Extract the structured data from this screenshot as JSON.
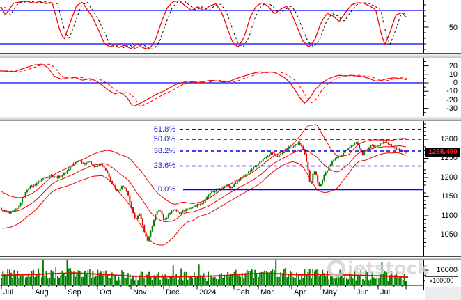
{
  "watermark": {
    "logo": "ring-icon",
    "text": "ietstock"
  },
  "x_axis": {
    "labels": [
      {
        "text": "Jul",
        "x": 5
      },
      {
        "text": "Aug",
        "x": 50
      },
      {
        "text": "Sep",
        "x": 97
      },
      {
        "text": "Oct",
        "x": 143
      },
      {
        "text": "Nov",
        "x": 191
      },
      {
        "text": "Dec",
        "x": 238
      },
      {
        "text": "2024",
        "x": 286
      },
      {
        "text": "Feb",
        "x": 339
      },
      {
        "text": "Mar",
        "x": 374
      },
      {
        "text": "Apr",
        "x": 422
      },
      {
        "text": "May",
        "x": 463
      },
      {
        "text": "Jun",
        "x": 512
      },
      {
        "text": "Jul",
        "x": 546
      }
    ],
    "month_ticks": [
      2,
      47,
      94,
      140,
      188,
      235,
      283,
      336,
      371,
      419,
      460,
      509,
      543,
      583
    ]
  },
  "panels": {
    "stochastic": {
      "axis_labels": [
        "50"
      ],
      "overbought_level": 80,
      "oversold_level": 20
    },
    "macd": {
      "axis_labels": [
        "20",
        "10",
        "0",
        "-10",
        "-20",
        "-30"
      ],
      "zero_level": 0
    },
    "price": {
      "axis_labels": [
        "1300",
        "1250",
        "1200",
        "1150",
        "1100",
        "1050"
      ],
      "last_price": "1265.490"
    },
    "volume": {
      "axis_labels": [
        "10000"
      ],
      "multiplier": "x100000"
    }
  },
  "colors": {
    "up_candle": "#008000",
    "down_candle": "#e00000",
    "band_line": "#f00000",
    "indicator_line": "#ff0000",
    "signal_dashed_p1": "#000000",
    "signal_dashed_p2": "#ff0000",
    "level_line": "#0000ff",
    "fib_line": "#0000ee",
    "fib_text": "#2222cc",
    "badge_bg": "#000000",
    "badge_text": "#ff2222",
    "volume_bar": "#008000",
    "volume_ma": "#ff0000"
  },
  "chart_data": [
    {
      "panel": "stochastic",
      "type": "line",
      "ylim": [
        0,
        100
      ],
      "levels": [
        80,
        20
      ],
      "yticks_labeled": [
        50
      ],
      "legend_position": "none",
      "grid": false,
      "series": [
        {
          "name": "%K",
          "style": "solid",
          "color": "#ff0000"
        },
        {
          "name": "%D",
          "style": "dashed",
          "color": "#000000",
          "lag": 0.012
        }
      ],
      "anchors": [
        [
          0,
          85
        ],
        [
          0.01,
          72
        ],
        [
          0.03,
          93
        ],
        [
          0.06,
          97
        ],
        [
          0.08,
          93
        ],
        [
          0.095,
          96
        ],
        [
          0.11,
          92
        ],
        [
          0.125,
          95
        ],
        [
          0.135,
          70
        ],
        [
          0.145,
          42
        ],
        [
          0.155,
          28
        ],
        [
          0.17,
          58
        ],
        [
          0.185,
          88
        ],
        [
          0.2,
          95
        ],
        [
          0.21,
          84
        ],
        [
          0.225,
          68
        ],
        [
          0.24,
          45
        ],
        [
          0.255,
          20
        ],
        [
          0.27,
          14
        ],
        [
          0.28,
          20
        ],
        [
          0.29,
          13
        ],
        [
          0.305,
          18
        ],
        [
          0.32,
          11
        ],
        [
          0.335,
          20
        ],
        [
          0.35,
          13
        ],
        [
          0.365,
          10
        ],
        [
          0.38,
          26
        ],
        [
          0.395,
          58
        ],
        [
          0.41,
          85
        ],
        [
          0.425,
          96
        ],
        [
          0.44,
          97
        ],
        [
          0.455,
          88
        ],
        [
          0.47,
          80
        ],
        [
          0.485,
          87
        ],
        [
          0.5,
          80
        ],
        [
          0.515,
          88
        ],
        [
          0.53,
          92
        ],
        [
          0.545,
          76
        ],
        [
          0.56,
          45
        ],
        [
          0.572,
          22
        ],
        [
          0.585,
          14
        ],
        [
          0.6,
          32
        ],
        [
          0.615,
          68
        ],
        [
          0.63,
          88
        ],
        [
          0.645,
          94
        ],
        [
          0.66,
          87
        ],
        [
          0.675,
          74
        ],
        [
          0.69,
          82
        ],
        [
          0.705,
          88
        ],
        [
          0.715,
          78
        ],
        [
          0.73,
          52
        ],
        [
          0.745,
          25
        ],
        [
          0.76,
          14
        ],
        [
          0.775,
          28
        ],
        [
          0.79,
          58
        ],
        [
          0.805,
          75
        ],
        [
          0.82,
          70
        ],
        [
          0.835,
          60
        ],
        [
          0.85,
          76
        ],
        [
          0.865,
          90
        ],
        [
          0.88,
          94
        ],
        [
          0.895,
          93
        ],
        [
          0.91,
          88
        ],
        [
          0.925,
          82
        ],
        [
          0.938,
          40
        ],
        [
          0.948,
          18
        ],
        [
          0.96,
          40
        ],
        [
          0.975,
          72
        ],
        [
          0.99,
          76
        ],
        [
          1,
          68
        ]
      ]
    },
    {
      "panel": "macd",
      "type": "line",
      "ylim": [
        -35,
        25
      ],
      "yticks": [
        20,
        10,
        0,
        -10,
        -20,
        -30
      ],
      "zero_line": 0,
      "grid": false,
      "series": [
        {
          "name": "macd",
          "style": "solid",
          "color": "#ff0000"
        },
        {
          "name": "signal",
          "style": "dashed",
          "color": "#ff0000",
          "lag": 0.018
        }
      ],
      "anchors": [
        [
          0,
          14
        ],
        [
          0.03,
          13
        ],
        [
          0.055,
          17
        ],
        [
          0.08,
          21
        ],
        [
          0.1,
          22
        ],
        [
          0.115,
          18
        ],
        [
          0.13,
          8
        ],
        [
          0.15,
          4
        ],
        [
          0.165,
          7
        ],
        [
          0.185,
          6
        ],
        [
          0.2,
          3
        ],
        [
          0.22,
          5
        ],
        [
          0.235,
          2
        ],
        [
          0.25,
          -3
        ],
        [
          0.265,
          -9
        ],
        [
          0.28,
          -13
        ],
        [
          0.295,
          -11
        ],
        [
          0.31,
          -17
        ],
        [
          0.325,
          -28
        ],
        [
          0.34,
          -25
        ],
        [
          0.355,
          -21
        ],
        [
          0.37,
          -17
        ],
        [
          0.385,
          -13
        ],
        [
          0.4,
          -10
        ],
        [
          0.415,
          -6
        ],
        [
          0.43,
          -2
        ],
        [
          0.445,
          0
        ],
        [
          0.46,
          2
        ],
        [
          0.475,
          1
        ],
        [
          0.49,
          0
        ],
        [
          0.505,
          2
        ],
        [
          0.52,
          3
        ],
        [
          0.535,
          2
        ],
        [
          0.55,
          1
        ],
        [
          0.565,
          2
        ],
        [
          0.58,
          5
        ],
        [
          0.6,
          8
        ],
        [
          0.62,
          11
        ],
        [
          0.64,
          13
        ],
        [
          0.655,
          12
        ],
        [
          0.67,
          13
        ],
        [
          0.685,
          10
        ],
        [
          0.7,
          6
        ],
        [
          0.712,
          1
        ],
        [
          0.725,
          -8
        ],
        [
          0.738,
          -18
        ],
        [
          0.75,
          -24
        ],
        [
          0.762,
          -18
        ],
        [
          0.775,
          -8
        ],
        [
          0.79,
          -1
        ],
        [
          0.805,
          4
        ],
        [
          0.82,
          7
        ],
        [
          0.835,
          9
        ],
        [
          0.85,
          8
        ],
        [
          0.865,
          9
        ],
        [
          0.88,
          8
        ],
        [
          0.895,
          7
        ],
        [
          0.91,
          5
        ],
        [
          0.925,
          2
        ],
        [
          0.94,
          3
        ],
        [
          0.955,
          5
        ],
        [
          0.97,
          6
        ],
        [
          0.985,
          5
        ],
        [
          1,
          4
        ]
      ]
    },
    {
      "panel": "price",
      "type": "candlestick",
      "days": 253,
      "ylim": [
        1020,
        1345
      ],
      "yticks": [
        1300,
        1250,
        1200,
        1150,
        1100,
        1050
      ],
      "last_price": 1265.49,
      "grid": false,
      "bollinger": {
        "window": 20,
        "mid_color": "#f00000"
      },
      "fibonacci": [
        {
          "label": "61.8%",
          "price": 1325
        },
        {
          "label": "50.0%",
          "price": 1300
        },
        {
          "label": "38.2%",
          "price": 1269
        },
        {
          "label": "23.6%",
          "price": 1230
        },
        {
          "label": "0.0%",
          "price": 1168
        }
      ],
      "close_anchors": [
        [
          0,
          1115
        ],
        [
          0.02,
          1106
        ],
        [
          0.04,
          1118
        ],
        [
          0.065,
          1172
        ],
        [
          0.08,
          1180
        ],
        [
          0.1,
          1196
        ],
        [
          0.12,
          1206
        ],
        [
          0.14,
          1200
        ],
        [
          0.158,
          1212
        ],
        [
          0.175,
          1232
        ],
        [
          0.19,
          1246
        ],
        [
          0.205,
          1236
        ],
        [
          0.218,
          1243
        ],
        [
          0.232,
          1226
        ],
        [
          0.245,
          1236
        ],
        [
          0.258,
          1218
        ],
        [
          0.272,
          1188
        ],
        [
          0.285,
          1162
        ],
        [
          0.3,
          1180
        ],
        [
          0.312,
          1158
        ],
        [
          0.322,
          1118
        ],
        [
          0.33,
          1088
        ],
        [
          0.34,
          1108
        ],
        [
          0.35,
          1072
        ],
        [
          0.36,
          1032
        ],
        [
          0.372,
          1068
        ],
        [
          0.382,
          1108
        ],
        [
          0.392,
          1116
        ],
        [
          0.402,
          1088
        ],
        [
          0.412,
          1102
        ],
        [
          0.425,
          1118
        ],
        [
          0.44,
          1108
        ],
        [
          0.455,
          1116
        ],
        [
          0.47,
          1122
        ],
        [
          0.484,
          1128
        ],
        [
          0.5,
          1136
        ],
        [
          0.515,
          1158
        ],
        [
          0.53,
          1166
        ],
        [
          0.545,
          1174
        ],
        [
          0.558,
          1182
        ],
        [
          0.568,
          1172
        ],
        [
          0.58,
          1188
        ],
        [
          0.595,
          1202
        ],
        [
          0.61,
          1214
        ],
        [
          0.625,
          1228
        ],
        [
          0.64,
          1242
        ],
        [
          0.655,
          1255
        ],
        [
          0.668,
          1266
        ],
        [
          0.68,
          1255
        ],
        [
          0.692,
          1262
        ],
        [
          0.705,
          1275
        ],
        [
          0.718,
          1282
        ],
        [
          0.735,
          1290
        ],
        [
          0.745,
          1278
        ],
        [
          0.752,
          1252
        ],
        [
          0.758,
          1218
        ],
        [
          0.764,
          1172
        ],
        [
          0.77,
          1208
        ],
        [
          0.776,
          1216
        ],
        [
          0.782,
          1186
        ],
        [
          0.788,
          1176
        ],
        [
          0.798,
          1206
        ],
        [
          0.808,
          1224
        ],
        [
          0.818,
          1242
        ],
        [
          0.828,
          1250
        ],
        [
          0.838,
          1258
        ],
        [
          0.848,
          1268
        ],
        [
          0.858,
          1278
        ],
        [
          0.868,
          1285
        ],
        [
          0.878,
          1290
        ],
        [
          0.886,
          1277
        ],
        [
          0.893,
          1258
        ],
        [
          0.902,
          1272
        ],
        [
          0.912,
          1283
        ],
        [
          0.923,
          1279
        ],
        [
          0.935,
          1288
        ],
        [
          0.948,
          1293
        ],
        [
          0.958,
          1285
        ],
        [
          0.97,
          1277
        ],
        [
          0.985,
          1272
        ],
        [
          1,
          1265.5
        ]
      ],
      "band_halfwidth_anchors": [
        [
          0,
          48
        ],
        [
          0.03,
          38
        ],
        [
          0.06,
          28
        ],
        [
          0.09,
          24
        ],
        [
          0.12,
          20
        ],
        [
          0.15,
          22
        ],
        [
          0.19,
          26
        ],
        [
          0.22,
          28
        ],
        [
          0.25,
          32
        ],
        [
          0.28,
          45
        ],
        [
          0.31,
          58
        ],
        [
          0.34,
          70
        ],
        [
          0.37,
          74
        ],
        [
          0.4,
          62
        ],
        [
          0.43,
          40
        ],
        [
          0.46,
          25
        ],
        [
          0.49,
          18
        ],
        [
          0.52,
          20
        ],
        [
          0.55,
          22
        ],
        [
          0.58,
          22
        ],
        [
          0.61,
          20
        ],
        [
          0.64,
          22
        ],
        [
          0.67,
          20
        ],
        [
          0.7,
          18
        ],
        [
          0.72,
          22
        ],
        [
          0.74,
          38
        ],
        [
          0.76,
          68
        ],
        [
          0.78,
          85
        ],
        [
          0.8,
          70
        ],
        [
          0.82,
          50
        ],
        [
          0.84,
          34
        ],
        [
          0.86,
          24
        ],
        [
          0.88,
          22
        ],
        [
          0.9,
          25
        ],
        [
          0.92,
          22
        ],
        [
          0.94,
          18
        ],
        [
          0.96,
          16
        ],
        [
          0.98,
          18
        ],
        [
          1,
          22
        ]
      ]
    },
    {
      "panel": "volume",
      "type": "bar",
      "ylim": [
        0,
        16000
      ],
      "yticks": [
        10000
      ],
      "multiplier": "x100000",
      "bar_color": "#008000",
      "grid": false,
      "ma_anchors": [
        [
          0,
          6600
        ],
        [
          0.05,
          6900
        ],
        [
          0.1,
          7400
        ],
        [
          0.15,
          7900
        ],
        [
          0.18,
          8100
        ],
        [
          0.22,
          7600
        ],
        [
          0.27,
          6900
        ],
        [
          0.32,
          6100
        ],
        [
          0.37,
          5700
        ],
        [
          0.42,
          5600
        ],
        [
          0.47,
          5800
        ],
        [
          0.52,
          6100
        ],
        [
          0.57,
          6700
        ],
        [
          0.62,
          7700
        ],
        [
          0.66,
          7900
        ],
        [
          0.7,
          7400
        ],
        [
          0.74,
          6900
        ],
        [
          0.78,
          7100
        ],
        [
          0.82,
          7000
        ],
        [
          0.86,
          6800
        ],
        [
          0.9,
          6500
        ],
        [
          0.94,
          6200
        ],
        [
          0.97,
          5800
        ],
        [
          1,
          5400
        ]
      ]
    }
  ]
}
